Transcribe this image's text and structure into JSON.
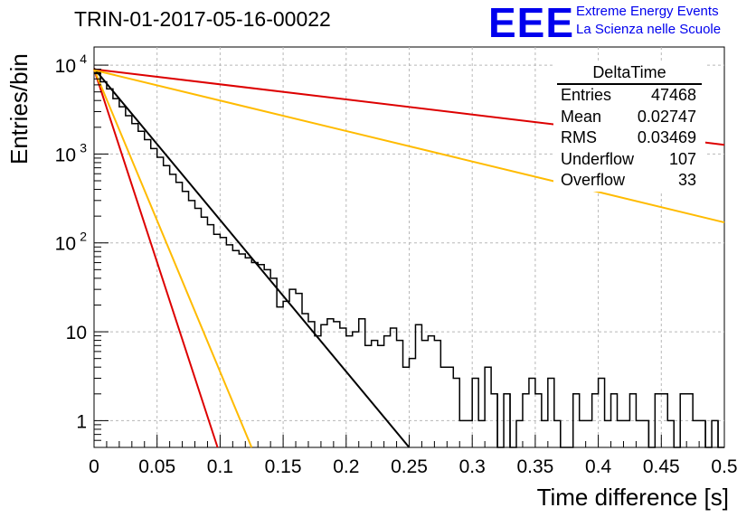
{
  "title": "TRIN-01-2017-05-16-00022",
  "logo": {
    "mark": "EEE",
    "line1": "Extreme Energy Events",
    "line2": "La Scienza nelle Scuole",
    "color": "#0000ee"
  },
  "stats_box": {
    "title": "DeltaTime",
    "rows": [
      {
        "label": "Entries",
        "value": "47468"
      },
      {
        "label": "Mean",
        "value": "0.02747"
      },
      {
        "label": "RMS",
        "value": "0.03469"
      },
      {
        "label": "Underflow",
        "value": "107"
      },
      {
        "label": "Overflow",
        "value": "33"
      }
    ]
  },
  "chart_data": {
    "type": "line",
    "title": "TRIN-01-2017-05-16-00022",
    "xlabel": "Time difference [s]",
    "ylabel": "Entries/bin",
    "xlim": [
      0,
      0.5
    ],
    "ylim": [
      0.5,
      16000
    ],
    "y_scale": "log",
    "grid": true,
    "x_ticks": [
      "0",
      "0.05",
      "0.1",
      "0.15",
      "0.2",
      "0.25",
      "0.3",
      "0.35",
      "0.4",
      "0.45",
      "0.5"
    ],
    "y_ticks": [
      {
        "value": 1,
        "label": "1",
        "sup": ""
      },
      {
        "value": 10,
        "label": "10",
        "sup": ""
      },
      {
        "value": 100,
        "label": "10",
        "sup": "2"
      },
      {
        "value": 1000,
        "label": "10",
        "sup": "3"
      },
      {
        "value": 10000,
        "label": "10",
        "sup": "4"
      }
    ],
    "histogram": {
      "color": "#000000",
      "bin_width": 0.005,
      "values": [
        8200,
        6500,
        5400,
        4200,
        3400,
        2700,
        2200,
        1800,
        1450,
        1150,
        920,
        740,
        590,
        480,
        380,
        300,
        245,
        195,
        160,
        125,
        115,
        95,
        82,
        75,
        68,
        60,
        57,
        50,
        40,
        19,
        22,
        30,
        27,
        16,
        13,
        9,
        12,
        14,
        13,
        11,
        9,
        10,
        14,
        7,
        8,
        7,
        9,
        11,
        8,
        4,
        5,
        12,
        8,
        9,
        8,
        4,
        4,
        3,
        1,
        1,
        3,
        1,
        4,
        2,
        0.1,
        2,
        0.1,
        1,
        2,
        3,
        2,
        1,
        3,
        1,
        0.1,
        0.1,
        2,
        1,
        1,
        2,
        3,
        1,
        2,
        1,
        1,
        2,
        1,
        1,
        0.1,
        2,
        2,
        1,
        0.1,
        2,
        2,
        1,
        1,
        0.1,
        1,
        0.1
      ]
    },
    "series": [
      {
        "color": "#000000",
        "points": [
          [
            0,
            9200
          ],
          [
            0.25,
            0.5
          ]
        ]
      },
      {
        "color": "#dd0000",
        "points": [
          [
            0,
            9000
          ],
          [
            0.098,
            0.5
          ]
        ]
      },
      {
        "color": "#ffbb00",
        "points": [
          [
            0,
            9000
          ],
          [
            0.125,
            0.5
          ]
        ]
      },
      {
        "color": "#dd0000",
        "points": [
          [
            0,
            9000
          ],
          [
            0.5,
            1270
          ]
        ]
      },
      {
        "color": "#ffbb00",
        "points": [
          [
            0,
            8800
          ],
          [
            0.5,
            170
          ]
        ]
      }
    ]
  }
}
